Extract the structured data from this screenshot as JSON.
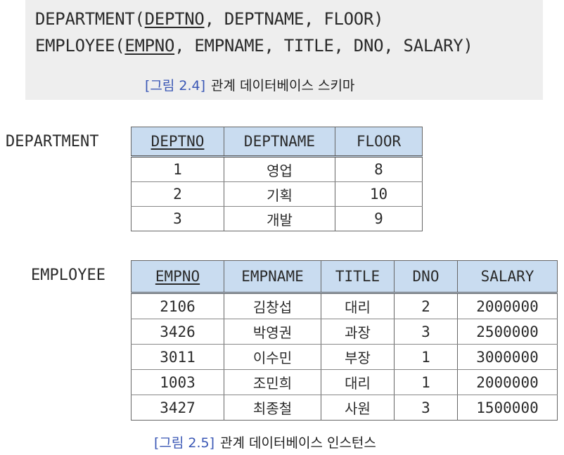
{
  "schema": {
    "line1": {
      "relation": "DEPARTMENT",
      "open": "(",
      "key": "DEPTNO",
      "rest": ", DEPTNAME, FLOOR)"
    },
    "line2": {
      "relation": "EMPLOYEE",
      "open": "(",
      "key": "EMPNO",
      "rest": ", EMPNAME, TITLE, DNO, SALARY)"
    },
    "caption": {
      "figure": "[그림 2.4]",
      "text": "관계 데이터베이스 스키마"
    }
  },
  "department": {
    "name": "DEPARTMENT",
    "headers": [
      "DEPTNO",
      "DEPTNAME",
      "FLOOR"
    ],
    "key_column": 0,
    "rows": [
      [
        "1",
        "영업",
        "8"
      ],
      [
        "2",
        "기획",
        "10"
      ],
      [
        "3",
        "개발",
        "9"
      ]
    ]
  },
  "employee": {
    "name": "EMPLOYEE",
    "headers": [
      "EMPNO",
      "EMPNAME",
      "TITLE",
      "DNO",
      "SALARY"
    ],
    "key_column": 0,
    "rows": [
      [
        "2106",
        "김창섭",
        "대리",
        "2",
        "2000000"
      ],
      [
        "3426",
        "박영권",
        "과장",
        "3",
        "2500000"
      ],
      [
        "3011",
        "이수민",
        "부장",
        "1",
        "3000000"
      ],
      [
        "1003",
        "조민희",
        "대리",
        "1",
        "2000000"
      ],
      [
        "3427",
        "최종철",
        "사원",
        "3",
        "1500000"
      ]
    ]
  },
  "instance_caption": {
    "figure": "[그림 2.5]",
    "text": "관계 데이터베이스 인스턴스"
  }
}
